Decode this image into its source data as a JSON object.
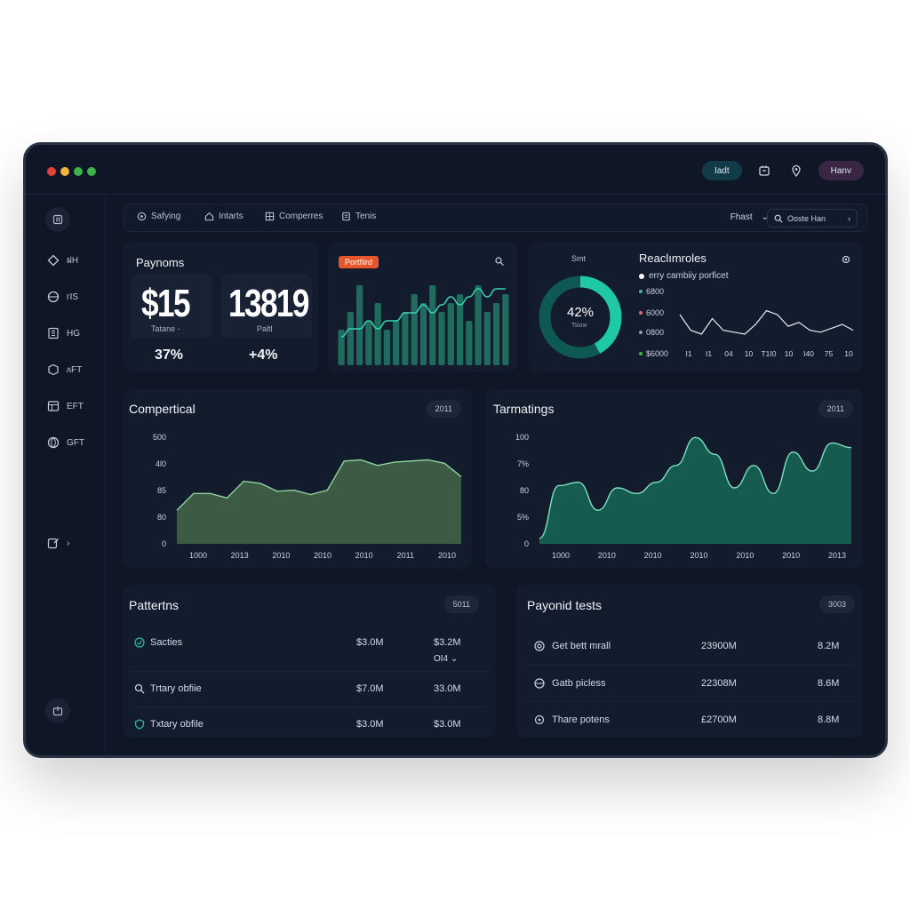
{
  "window": {
    "dots": [
      "#e0443a",
      "#f2b53c",
      "#3bb54a",
      "#3bb54a"
    ],
    "header_btn_teal": "Iadt",
    "header_btn_purple": "Hanv",
    "icons": [
      "calendar-icon",
      "location-pin-icon"
    ]
  },
  "sidebar": {
    "items": [
      {
        "label": "ฝH",
        "icon": "diamond-icon"
      },
      {
        "label": "ᴦIS",
        "icon": "globe-icon"
      },
      {
        "label": "HG",
        "icon": "grid-icon"
      },
      {
        "label": "ᴧFT",
        "icon": "cube-icon"
      },
      {
        "label": "EFT",
        "icon": "table-icon"
      },
      {
        "label": "GFT",
        "icon": "globe-icon"
      },
      {
        "label": "›",
        "icon": "edit-icon"
      }
    ]
  },
  "toolbar": {
    "items": [
      "Safying",
      "Intarts",
      "Comperres",
      "Tenis"
    ],
    "filter_label": "Fhast",
    "search_text": "Ooste Han"
  },
  "payments": {
    "title": "Paynoms",
    "stat1_value": "$15",
    "stat1_sub": "Tatane -",
    "stat1_pct": "37%",
    "stat2_value": "13819",
    "stat2_sub": "Paltl",
    "stat2_pct": "+4%"
  },
  "mini_chart": {
    "tag": "Portfiird",
    "bars": [
      4,
      6,
      9,
      5,
      7,
      4,
      5,
      6,
      8,
      7,
      9,
      6,
      7,
      8,
      5,
      9,
      6,
      7,
      8
    ],
    "line": [
      3,
      4,
      4,
      5,
      4,
      5,
      5,
      6,
      6,
      7,
      6,
      7,
      8,
      7,
      8,
      9,
      8,
      9,
      9
    ]
  },
  "donut": {
    "label_top": "Smt",
    "value": "42%",
    "sublabel": "Tsiow",
    "percent": 0.42
  },
  "realtime": {
    "title": "Reaclımroles",
    "legend": "erry cambiiy porficet",
    "y_labels": [
      "6800",
      "6000",
      "0800",
      "$6000"
    ],
    "x_labels": [
      "I1",
      "I1",
      "04",
      "10",
      "T1I0",
      "10",
      "I40",
      "75",
      "10"
    ],
    "series": [
      5,
      4.2,
      4.0,
      4.8,
      4.2,
      4.1,
      4.0,
      4.5,
      5.2,
      5.0,
      4.4,
      4.6,
      4.2,
      4.1,
      4.3,
      4.5,
      4.2
    ]
  },
  "commercial": {
    "title": "Compertical",
    "badge": "2011",
    "y_labels": [
      "500",
      "4l0",
      "85",
      "80",
      "0"
    ],
    "x_labels": [
      "1000",
      "2013",
      "2010",
      "2010",
      "2010",
      "2011",
      "2010"
    ],
    "series": [
      150,
      225,
      225,
      205,
      280,
      270,
      235,
      240,
      220,
      240,
      370,
      375,
      350,
      365,
      370,
      375,
      360,
      300
    ]
  },
  "tarmatings": {
    "title": "Tarmatings",
    "badge": "2011",
    "y_labels": [
      "100",
      "7%",
      "80",
      "5%",
      "0"
    ],
    "x_labels": [
      "1000",
      "2010",
      "2010",
      "2010",
      "2010",
      "2010",
      "2013"
    ],
    "series": [
      0.05,
      0.52,
      0.55,
      0.3,
      0.5,
      0.45,
      0.55,
      0.7,
      0.95,
      0.8,
      0.5,
      0.7,
      0.45,
      0.82,
      0.65,
      0.9,
      0.86
    ]
  },
  "patterns": {
    "title": "Pattertns",
    "badge": "5011",
    "rows": [
      {
        "icon": "leaf-icon",
        "name": "Sacties",
        "v1": "$3.0M",
        "v2": "$3.2M",
        "extra": "OI4 ⌄"
      },
      {
        "icon": "search-icon",
        "name": "Trtary obfiie",
        "v1": "$7.0M",
        "v2": "33.0M",
        "extra": ""
      },
      {
        "icon": "shield-icon",
        "name": "Txtary obfile",
        "v1": "$3.0M",
        "v2": "$3.0M",
        "extra": ""
      }
    ]
  },
  "payoid": {
    "title": "Payonid tests",
    "badge": "3003",
    "rows": [
      {
        "icon": "target-icon",
        "name": "Get bett mrall",
        "v1": "23900M",
        "v2": "8.2M"
      },
      {
        "icon": "globe-icon",
        "name": "Gatb picless",
        "v1": "22308M",
        "v2": "8.6M"
      },
      {
        "icon": "settings-icon",
        "name": "Thare potens",
        "v1": "£2700M",
        "v2": "8.8M"
      }
    ]
  }
}
